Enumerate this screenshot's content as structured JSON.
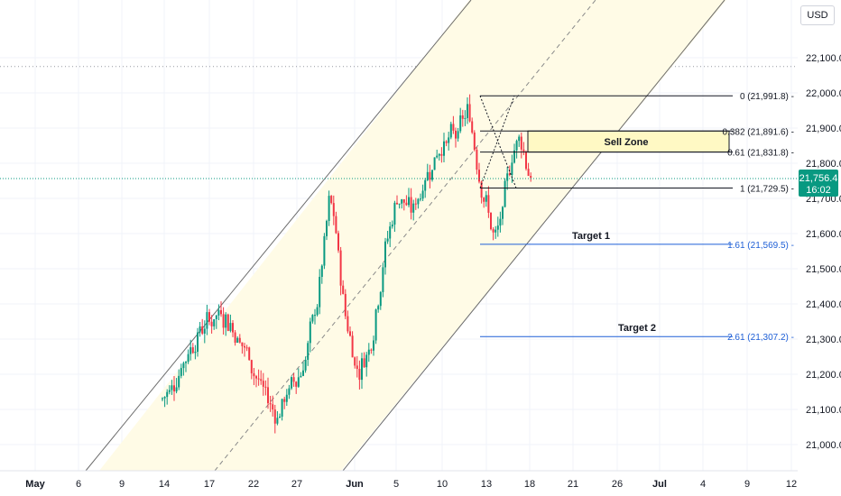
{
  "currency": "USD",
  "chart_data": {
    "type": "candlestick",
    "y_axis": {
      "ticks": [
        21000,
        21100,
        21200,
        21300,
        21400,
        21500,
        21600,
        21700,
        21800,
        21900,
        22000,
        22100
      ],
      "tick_labels": [
        "21,000.0",
        "21,100.0",
        "21,200.0",
        "21,300.0",
        "21,400.0",
        "21,500.0",
        "21,600.0",
        "21,700.0",
        "21,800.0",
        "21,900.0",
        "22,000.0",
        "22,100.0"
      ],
      "range": [
        20935,
        22225
      ]
    },
    "x_axis": {
      "tick_labels": [
        {
          "label": "May",
          "bold": true
        },
        {
          "label": "6"
        },
        {
          "label": "9"
        },
        {
          "label": "14"
        },
        {
          "label": "17"
        },
        {
          "label": "22"
        },
        {
          "label": "27"
        },
        {
          "label": "Jun",
          "bold": true
        },
        {
          "label": "5"
        },
        {
          "label": "10"
        },
        {
          "label": "13"
        },
        {
          "label": "18"
        },
        {
          "label": "21"
        },
        {
          "label": "26"
        },
        {
          "label": "Jul",
          "bold": true
        },
        {
          "label": "4"
        },
        {
          "label": "9"
        },
        {
          "label": "12"
        }
      ]
    },
    "current_price": {
      "label": "21,756.4",
      "countdown": "16:02",
      "value": 21756.4,
      "color": "#089981"
    },
    "high_marker": 22075,
    "fib_levels": [
      {
        "label": "0 (21,991.8)",
        "value": 21991.8,
        "color": "#131722"
      },
      {
        "label": "0.382 (21,891.6)",
        "value": 21891.6,
        "color": "#131722"
      },
      {
        "label": "0.61 (21,831.8)",
        "value": 21831.8,
        "color": "#131722"
      },
      {
        "label": "1 (21,729.5)",
        "value": 21729.5,
        "color": "#131722"
      },
      {
        "label": "1.61 (21,569.5)",
        "value": 21569.5,
        "color": "#1e5fd6"
      },
      {
        "label": "2.61 (21,307.2)",
        "value": 21307.2,
        "color": "#1e5fd6"
      }
    ],
    "annotations": {
      "sell_zone": "Sell Zone",
      "target1": "Target 1",
      "target2": "Target 2"
    },
    "colors": {
      "up": "#089981",
      "down": "#f23645",
      "zone": "#fff9c4",
      "channel": "#fffbe6",
      "fib_blue": "#1e5fd6"
    }
  }
}
